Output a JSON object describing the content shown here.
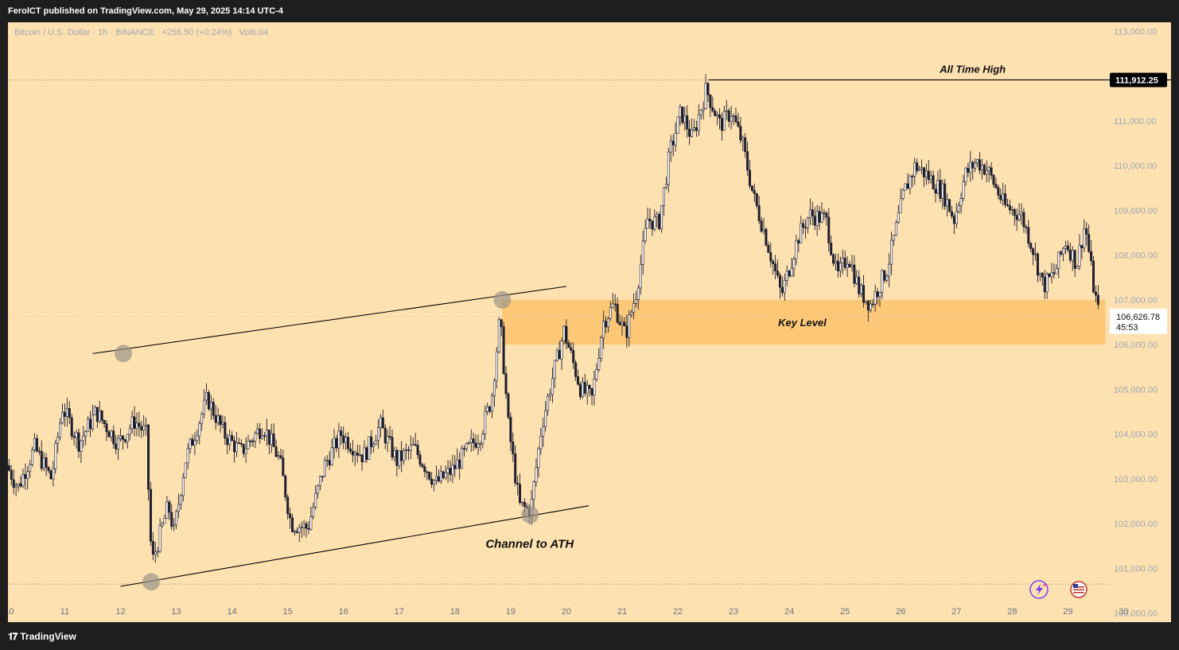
{
  "header": {
    "title": "FerolCT published on TradingView.com, May 29, 2025 14:14 UTC-4"
  },
  "legend": {
    "symbol": "Bitcoin / U.S. Dollar · 1h · BINANCE",
    "change": "+256.50 (+0.24%)",
    "vol_label": "Vol",
    "vol_value": "6.04"
  },
  "footer": {
    "brand": "TradingView"
  },
  "annotations": {
    "ath_label": "All Time High",
    "key_level_label": "Key Level",
    "channel_label": "Channel to ATH"
  },
  "price_badges": {
    "ath": "111,912.25",
    "current": "106,626.78",
    "countdown": "45:53"
  },
  "colors": {
    "background": "#fde1b1",
    "key_level_zone": "#fcc674",
    "candle": "#1f1f2e",
    "frame": "#1e1e1e",
    "axis_text": "#9da8b4"
  },
  "icons": [
    "lightning-stars-icon",
    "us-flag-icon"
  ],
  "chart_data": {
    "type": "candlestick",
    "title": "Bitcoin / U.S. Dollar · 1h · BINANCE",
    "xlabel": "",
    "ylabel": "",
    "x_ticks": [
      "10",
      "11",
      "12",
      "13",
      "14",
      "15",
      "16",
      "17",
      "18",
      "19",
      "20",
      "21",
      "22",
      "23",
      "24",
      "25",
      "26",
      "27",
      "28",
      "29",
      "30"
    ],
    "y_ticks": [
      "100,000.00",
      "101,000.00",
      "102,000.00",
      "103,000.00",
      "104,000.00",
      "105,000.00",
      "106,000.00",
      "107,000.00",
      "108,000.00",
      "109,000.00",
      "110,000.00",
      "111,000.00",
      "112,000.00",
      "113,000.00"
    ],
    "ylim": [
      99800,
      113200
    ],
    "xlim": [
      9.98,
      30.85
    ],
    "price_path": [
      [
        10.0,
        103300
      ],
      [
        10.2,
        102800
      ],
      [
        10.5,
        103700
      ],
      [
        10.8,
        103000
      ],
      [
        11.0,
        104600
      ],
      [
        11.3,
        103800
      ],
      [
        11.6,
        104500
      ],
      [
        12.0,
        103800
      ],
      [
        12.3,
        104300
      ],
      [
        12.5,
        104000
      ],
      [
        12.6,
        101100
      ],
      [
        12.9,
        102400
      ],
      [
        13.0,
        101800
      ],
      [
        13.2,
        103400
      ],
      [
        13.6,
        104800
      ],
      [
        13.9,
        104000
      ],
      [
        14.2,
        103600
      ],
      [
        14.6,
        104200
      ],
      [
        14.9,
        103400
      ],
      [
        15.1,
        102000
      ],
      [
        15.4,
        101900
      ],
      [
        15.7,
        103300
      ],
      [
        16.0,
        104000
      ],
      [
        16.4,
        103500
      ],
      [
        16.7,
        104200
      ],
      [
        17.0,
        103400
      ],
      [
        17.3,
        103700
      ],
      [
        17.7,
        102900
      ],
      [
        18.0,
        103200
      ],
      [
        18.3,
        103700
      ],
      [
        18.5,
        104000
      ],
      [
        18.7,
        104800
      ],
      [
        18.85,
        106600
      ],
      [
        19.0,
        104200
      ],
      [
        19.2,
        102400
      ],
      [
        19.4,
        102300
      ],
      [
        19.6,
        104200
      ],
      [
        19.8,
        105300
      ],
      [
        20.0,
        106300
      ],
      [
        20.3,
        105000
      ],
      [
        20.5,
        104800
      ],
      [
        20.7,
        106500
      ],
      [
        20.9,
        106900
      ],
      [
        21.1,
        106200
      ],
      [
        21.3,
        107200
      ],
      [
        21.5,
        108800
      ],
      [
        21.7,
        108700
      ],
      [
        21.9,
        110300
      ],
      [
        22.1,
        111200
      ],
      [
        22.3,
        110600
      ],
      [
        22.55,
        111700
      ],
      [
        22.8,
        110900
      ],
      [
        23.0,
        111200
      ],
      [
        23.2,
        110500
      ],
      [
        23.4,
        109300
      ],
      [
        23.6,
        108500
      ],
      [
        23.9,
        107100
      ],
      [
        24.2,
        108400
      ],
      [
        24.4,
        108900
      ],
      [
        24.7,
        108800
      ],
      [
        24.9,
        107500
      ],
      [
        25.1,
        108000
      ],
      [
        25.3,
        107200
      ],
      [
        25.5,
        106900
      ],
      [
        25.8,
        107700
      ],
      [
        26.1,
        109400
      ],
      [
        26.3,
        110000
      ],
      [
        26.5,
        109800
      ],
      [
        26.8,
        109400
      ],
      [
        27.0,
        108800
      ],
      [
        27.2,
        109800
      ],
      [
        27.4,
        110100
      ],
      [
        27.6,
        109900
      ],
      [
        27.9,
        109100
      ],
      [
        28.2,
        108900
      ],
      [
        28.4,
        108200
      ],
      [
        28.6,
        107300
      ],
      [
        28.8,
        107600
      ],
      [
        29.0,
        108300
      ],
      [
        29.2,
        107800
      ],
      [
        29.35,
        108700
      ],
      [
        29.5,
        107300
      ],
      [
        29.6,
        106627
      ]
    ],
    "levels": {
      "all_time_high": 111912.25,
      "current_price": 106626.78,
      "key_level_zone": [
        106000,
        107000
      ],
      "lower_dotted": 100650
    },
    "channel_lines": {
      "upper": [
        [
          11.5,
          105800
        ],
        [
          20.0,
          107300
        ]
      ],
      "lower": [
        [
          12.0,
          100600
        ],
        [
          20.4,
          102400
        ]
      ]
    },
    "touch_points": [
      [
        12.05,
        105800
      ],
      [
        12.55,
        100700
      ],
      [
        18.85,
        107000
      ],
      [
        19.35,
        102200
      ]
    ],
    "ath_line": [
      [
        22.55,
        111912.25
      ],
      [
        30.85,
        111912.25
      ]
    ]
  }
}
